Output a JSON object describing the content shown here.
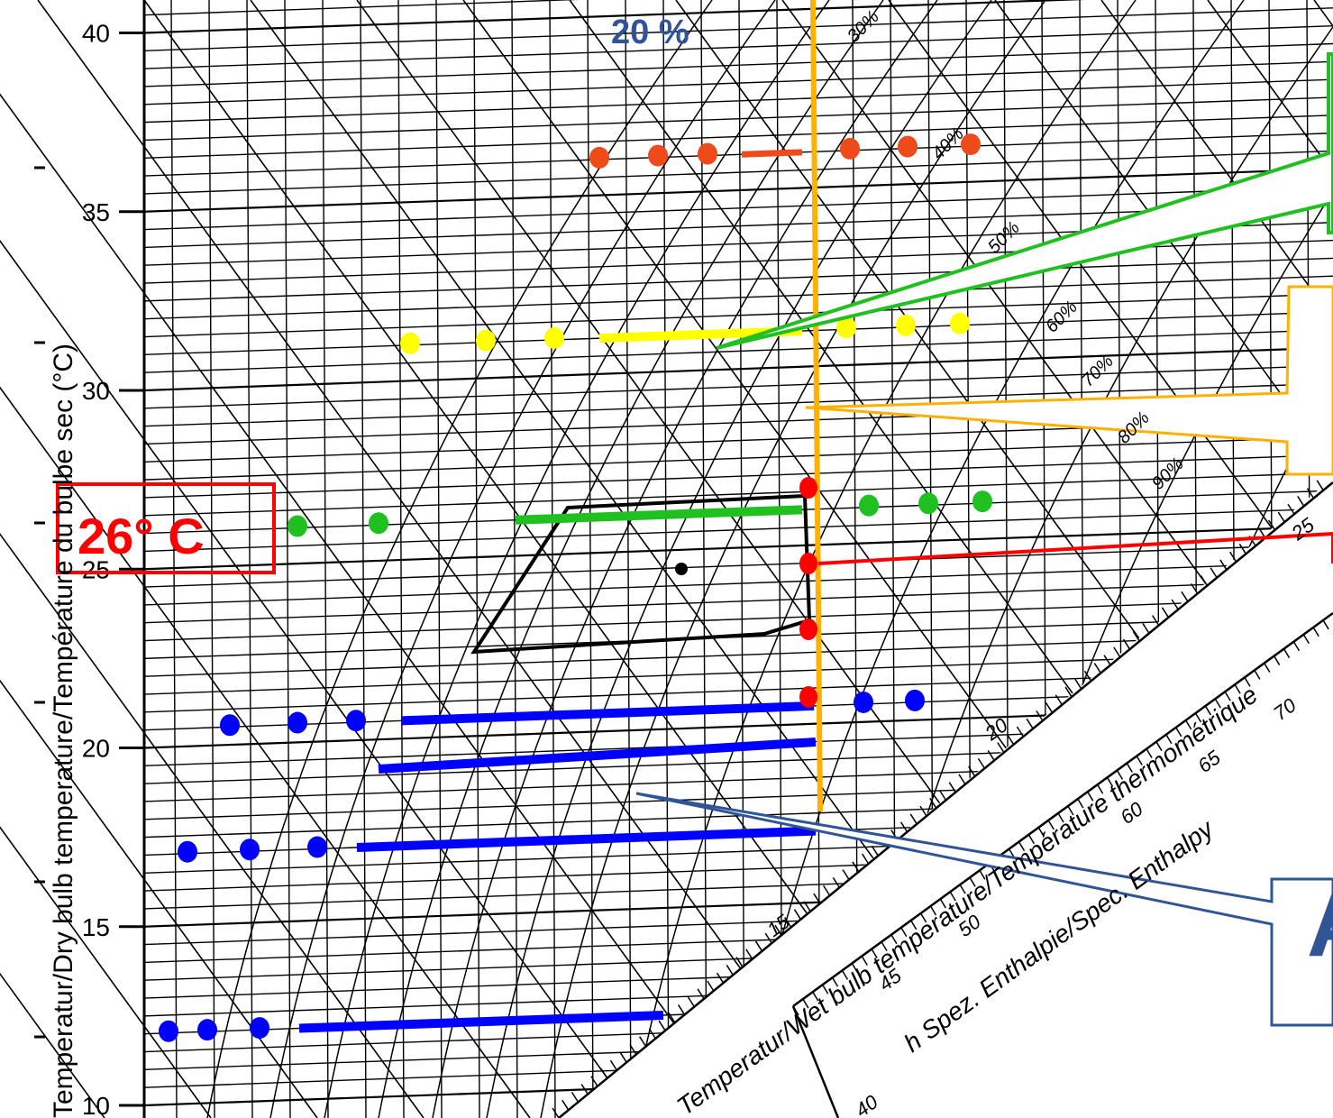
{
  "chart_data": {
    "type": "psychrometric-chart",
    "title": "",
    "ylabel": "Temperatur/Dry bulb temperature/Température du bulbe sec (°C)",
    "ylim": [
      10,
      40
    ],
    "yticks": [
      10,
      15,
      20,
      25,
      30,
      35,
      40
    ],
    "grid": true,
    "rh_curve_labels": [
      "30%",
      "40%",
      "50%",
      "60%",
      "70%",
      "80%",
      "90%"
    ],
    "wet_bulb_scale": {
      "label": "Temperatur/Wet bulb temperature/Température thermométrique",
      "ticks": [
        "15",
        "20",
        "25"
      ]
    },
    "enthalpy_scale": {
      "label": "h  Spez. Enthalpie/Spec. Enthalpy",
      "ticks": [
        "40",
        "45",
        "50",
        "60",
        "65",
        "70"
      ]
    },
    "comfort_zone": {
      "description_text": "",
      "center_point_temp": 24.3
    },
    "annotations": {
      "rh_top": "20 %",
      "highlight_temp": "26°   C",
      "partial_callout_text": "A"
    },
    "marked_temperatures": [
      {
        "temp": 36.0,
        "color": "#ef4a1a"
      },
      {
        "temp": 31.0,
        "color": "#ffff00"
      },
      {
        "temp": 26.0,
        "color": "#20c020"
      },
      {
        "temp": 20.5,
        "color": "#0000ff"
      },
      {
        "temp": 17.0,
        "color": "#0000ff"
      },
      {
        "temp": 12.0,
        "color": "#0000ff"
      }
    ],
    "colors": {
      "grid": "#000000",
      "orange": "#ffb000",
      "red": "#ff0000",
      "green": "#20c020",
      "yellow": "#ffff00",
      "blue": "#0000ff",
      "callout_blue": "#2f5597",
      "label_blue": "#2f5597"
    }
  }
}
